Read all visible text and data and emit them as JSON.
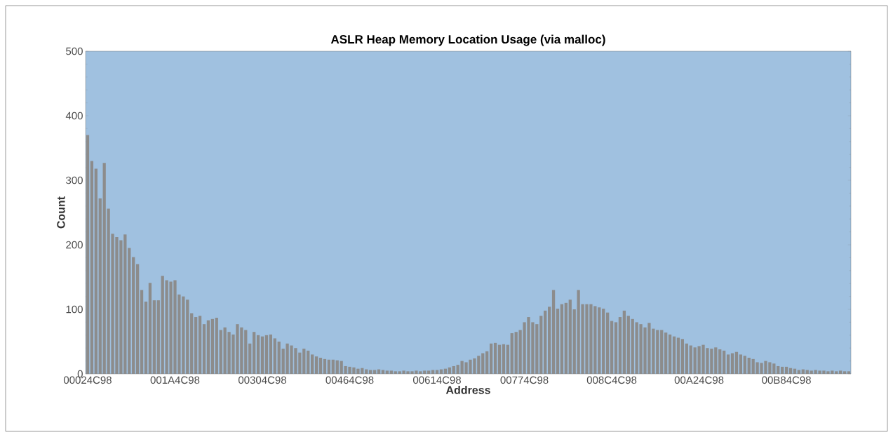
{
  "chart_data": {
    "type": "bar",
    "title": "ASLR Heap Memory Location Usage (via malloc)",
    "xlabel": "Address",
    "ylabel": "Count",
    "categories": [
      "00024C98",
      null,
      null,
      null,
      null,
      null,
      null,
      null,
      null,
      null,
      null,
      null,
      null,
      null,
      null,
      null,
      null,
      null,
      null,
      null,
      null,
      "001A4C98",
      null,
      null,
      null,
      null,
      null,
      null,
      null,
      null,
      null,
      null,
      null,
      null,
      null,
      null,
      null,
      null,
      null,
      null,
      null,
      null,
      "00304C98",
      null,
      null,
      null,
      null,
      null,
      null,
      null,
      null,
      null,
      null,
      null,
      null,
      null,
      null,
      null,
      null,
      null,
      null,
      null,
      null,
      "00464C98",
      null,
      null,
      null,
      null,
      null,
      null,
      null,
      null,
      null,
      null,
      null,
      null,
      null,
      null,
      null,
      null,
      null,
      null,
      null,
      null,
      "00614C98",
      null,
      null,
      null,
      null,
      null,
      null,
      null,
      null,
      null,
      null,
      null,
      null,
      null,
      null,
      null,
      null,
      null,
      null,
      null,
      null,
      "00774C98",
      null,
      null,
      null,
      null,
      null,
      null,
      null,
      null,
      null,
      null,
      null,
      null,
      null,
      null,
      null,
      null,
      null,
      null,
      null,
      null,
      "008C4C98",
      null,
      null,
      null,
      null,
      null,
      null,
      null,
      null,
      null,
      null,
      null,
      null,
      null,
      null,
      null,
      null,
      null,
      null,
      null,
      null,
      "00A24C98",
      null,
      null,
      null,
      null,
      null,
      null,
      null,
      null,
      null,
      null,
      null,
      null,
      null,
      null,
      null,
      null,
      null,
      null,
      null,
      null,
      "00B84C98",
      null,
      null,
      null,
      null,
      null,
      null,
      null,
      null,
      null,
      null,
      null,
      null,
      null,
      null,
      null
    ],
    "values": [
      370,
      330,
      318,
      272,
      327,
      256,
      217,
      212,
      207,
      216,
      195,
      181,
      170,
      130,
      112,
      141,
      114,
      114,
      152,
      145,
      143,
      145,
      123,
      120,
      115,
      94,
      88,
      90,
      77,
      83,
      85,
      87,
      68,
      72,
      65,
      61,
      77,
      72,
      68,
      47,
      65,
      60,
      58,
      60,
      61,
      55,
      50,
      39,
      47,
      44,
      40,
      33,
      39,
      36,
      30,
      27,
      25,
      23,
      22,
      22,
      21,
      20,
      12,
      11,
      10,
      8,
      9,
      7,
      6,
      6,
      7,
      6,
      5,
      5,
      4,
      4,
      5,
      4,
      4,
      5,
      4,
      5,
      5,
      6,
      6,
      7,
      8,
      10,
      12,
      14,
      20,
      18,
      22,
      24,
      28,
      32,
      35,
      47,
      48,
      45,
      46,
      45,
      63,
      65,
      68,
      80,
      88,
      80,
      77,
      90,
      98,
      104,
      130,
      101,
      108,
      110,
      115,
      100,
      130,
      108,
      108,
      108,
      105,
      103,
      101,
      95,
      82,
      80,
      88,
      98,
      90,
      85,
      80,
      77,
      72,
      79,
      70,
      68,
      68,
      64,
      61,
      58,
      56,
      54,
      47,
      44,
      41,
      43,
      45,
      40,
      39,
      41,
      38,
      36,
      30,
      32,
      34,
      30,
      28,
      25,
      23,
      18,
      17,
      20,
      18,
      16,
      12,
      11,
      11,
      9,
      8,
      6,
      7,
      6,
      5,
      6,
      5,
      5,
      4,
      5,
      4,
      5,
      4,
      4
    ],
    "color": "#8c8c8c",
    "ylim": [
      0,
      500
    ],
    "yticks": [
      0,
      100,
      200,
      300,
      400,
      500
    ]
  }
}
